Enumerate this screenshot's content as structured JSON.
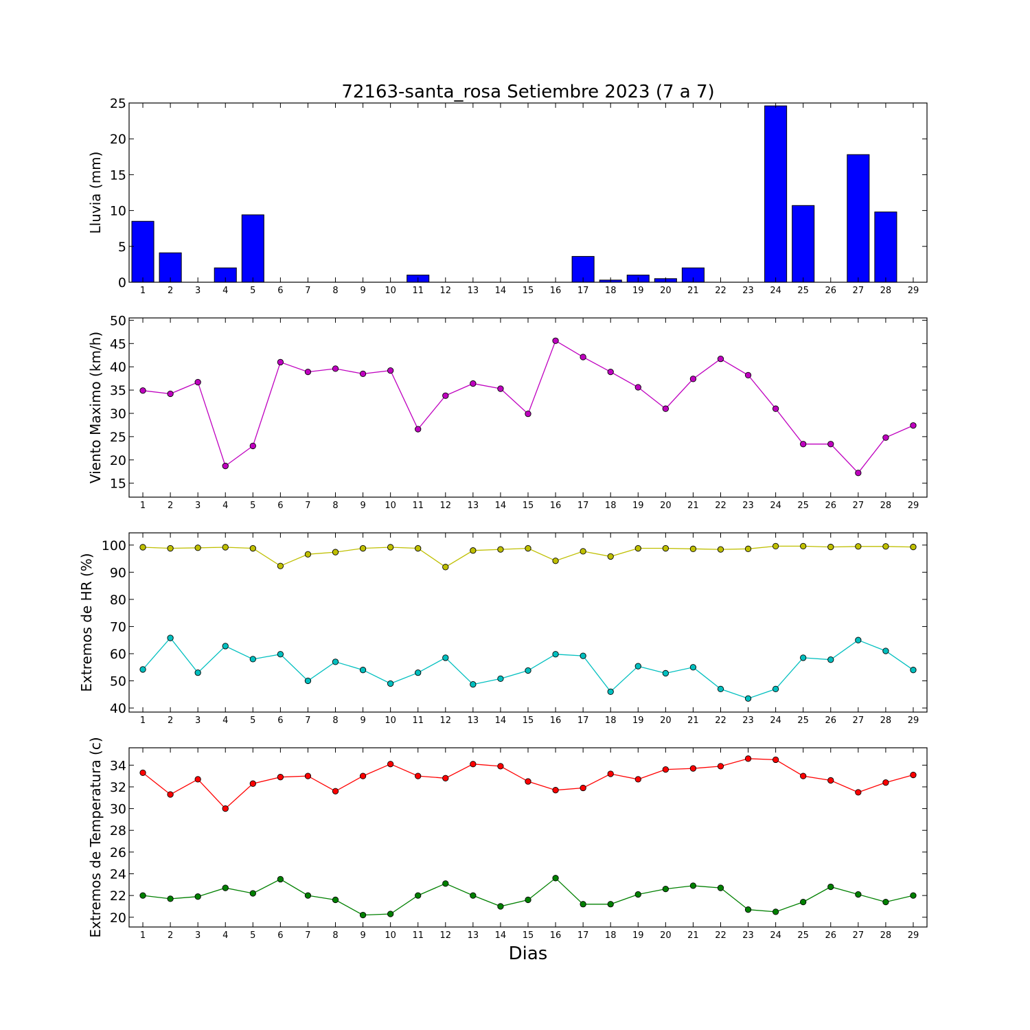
{
  "title": "72163-santa_rosa Setiembre 2023  (7 a 7)",
  "xlabel": "Dias",
  "colors": {
    "rain": "#0000ff",
    "wind": "#bf00bf",
    "hr_max": "#bfbf00",
    "hr_min": "#00bfbf",
    "temp_max": "#ff0000",
    "temp_min": "#008000"
  },
  "chart_data": [
    {
      "type": "bar",
      "ylabel": "Lluvia (mm)",
      "categories": [
        1,
        2,
        3,
        4,
        5,
        6,
        7,
        8,
        9,
        10,
        11,
        12,
        13,
        14,
        15,
        16,
        17,
        18,
        19,
        20,
        21,
        22,
        23,
        24,
        25,
        26,
        27,
        28,
        29
      ],
      "xlim": [
        0.5,
        29.5
      ],
      "ylim": [
        0,
        25
      ],
      "yticks": [
        0,
        5,
        10,
        15,
        20,
        25
      ],
      "values": [
        8.5,
        4.1,
        0,
        2.0,
        9.4,
        0,
        0,
        0,
        0,
        0,
        1.0,
        0,
        0,
        0,
        0,
        0,
        3.6,
        0.3,
        1.0,
        0.5,
        2.0,
        0,
        0,
        24.6,
        10.7,
        0,
        17.8,
        9.8,
        0
      ]
    },
    {
      "type": "line",
      "ylabel": "Viento Maximo (km/h)",
      "x": [
        1,
        2,
        3,
        4,
        5,
        6,
        7,
        8,
        9,
        10,
        11,
        12,
        13,
        14,
        15,
        16,
        17,
        18,
        19,
        20,
        21,
        22,
        23,
        24,
        25,
        26,
        27,
        28,
        29
      ],
      "xlim": [
        0.5,
        29.5
      ],
      "ylim": [
        12,
        50.5
      ],
      "yticks": [
        15,
        20,
        25,
        30,
        35,
        40,
        45,
        50
      ],
      "series": [
        {
          "values": [
            34.9,
            34.2,
            36.7,
            18.7,
            23.0,
            41.0,
            38.9,
            39.6,
            38.5,
            39.2,
            26.6,
            33.8,
            36.4,
            35.3,
            29.9,
            45.6,
            42.1,
            38.9,
            35.6,
            31.0,
            37.4,
            41.7,
            38.2,
            31.0,
            23.4,
            23.4,
            17.2,
            24.8,
            27.4
          ]
        }
      ]
    },
    {
      "type": "line",
      "ylabel": "Extremos de HR (%)",
      "x": [
        1,
        2,
        3,
        4,
        5,
        6,
        7,
        8,
        9,
        10,
        11,
        12,
        13,
        14,
        15,
        16,
        17,
        18,
        19,
        20,
        21,
        22,
        23,
        24,
        25,
        26,
        27,
        28,
        29
      ],
      "xlim": [
        0.5,
        29.5
      ],
      "ylim": [
        38.5,
        104.5
      ],
      "yticks": [
        40,
        50,
        60,
        70,
        80,
        90,
        100
      ],
      "series": [
        {
          "values": [
            99.2,
            98.8,
            99.0,
            99.2,
            98.8,
            92.3,
            96.6,
            97.4,
            98.8,
            99.2,
            98.8,
            91.9,
            98.0,
            98.4,
            98.8,
            94.2,
            97.7,
            95.8,
            98.8,
            98.8,
            98.6,
            98.4,
            98.6,
            99.6,
            99.6,
            99.3,
            99.5,
            99.5,
            99.3
          ]
        },
        {
          "values": [
            54.2,
            65.8,
            53.0,
            62.8,
            58.0,
            59.8,
            50.0,
            57.0,
            54.0,
            49.0,
            53.0,
            58.5,
            48.7,
            50.8,
            53.8,
            59.8,
            59.2,
            46.0,
            55.4,
            52.8,
            55.0,
            47.0,
            43.5,
            47.0,
            58.5,
            57.8,
            65.0,
            61.0,
            54.0
          ]
        }
      ]
    },
    {
      "type": "line",
      "ylabel": "Extremos de Temperatura (c)",
      "x": [
        1,
        2,
        3,
        4,
        5,
        6,
        7,
        8,
        9,
        10,
        11,
        12,
        13,
        14,
        15,
        16,
        17,
        18,
        19,
        20,
        21,
        22,
        23,
        24,
        25,
        26,
        27,
        28,
        29
      ],
      "xlim": [
        0.5,
        29.5
      ],
      "ylim": [
        19.1,
        35.6
      ],
      "yticks": [
        20,
        22,
        24,
        26,
        28,
        30,
        32,
        34
      ],
      "series": [
        {
          "values": [
            33.3,
            31.3,
            32.7,
            30.0,
            32.3,
            32.9,
            33.0,
            31.6,
            33.0,
            34.1,
            33.0,
            32.8,
            34.1,
            33.9,
            32.5,
            31.7,
            31.9,
            33.2,
            32.7,
            33.6,
            33.7,
            33.9,
            34.6,
            34.5,
            33.0,
            32.6,
            31.5,
            32.4,
            33.1
          ]
        },
        {
          "values": [
            22.0,
            21.7,
            21.9,
            22.7,
            22.2,
            23.5,
            22.0,
            21.6,
            20.2,
            20.3,
            22.0,
            23.1,
            22.0,
            21.0,
            21.6,
            23.6,
            21.2,
            21.2,
            22.1,
            22.6,
            22.9,
            22.7,
            20.7,
            20.5,
            21.4,
            22.8,
            22.1,
            21.4,
            22.0
          ]
        }
      ]
    }
  ]
}
